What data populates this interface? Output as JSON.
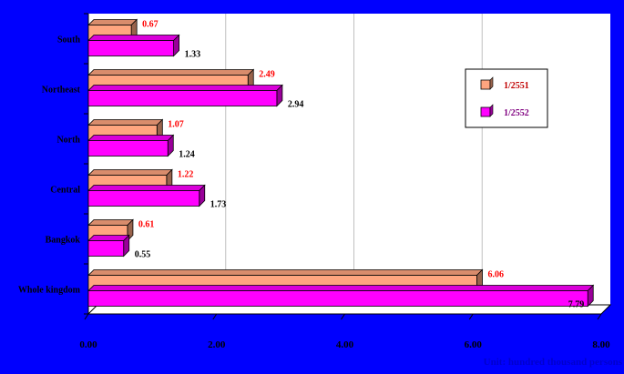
{
  "chart_data": {
    "type": "bar",
    "orientation": "horizontal",
    "categories": [
      "Whole kingdom",
      "Bangkok",
      "Central",
      "North",
      "Northeast",
      "South"
    ],
    "series": [
      {
        "name": "1/2551",
        "values": [
          6.06,
          0.61,
          1.22,
          1.07,
          2.49,
          0.67
        ],
        "color": "#FFA57F",
        "label_color": "#FF0000"
      },
      {
        "name": "1/2552",
        "values": [
          7.79,
          0.55,
          1.73,
          1.24,
          2.94,
          1.33
        ],
        "color": "#FF00FF",
        "label_color": "#000000"
      }
    ],
    "value_labels": [
      [
        "6.06",
        "0.61",
        "1.22",
        "1.07",
        "2.49",
        "0.67"
      ],
      [
        "7.79",
        "0.55",
        "1.73",
        "1.24",
        "2.94",
        "1.33"
      ]
    ],
    "xticks": [
      "0.00",
      "2.00",
      "4.00",
      "6.00",
      "8.00"
    ],
    "xlim": [
      0,
      8
    ],
    "grid": true,
    "legend_position": "top-right",
    "title": "",
    "xlabel": "",
    "ylabel": ""
  },
  "note": "Unit: hundred thousand persons",
  "colors": {
    "background": "#0000FE",
    "plot_area": "#FFFFFF",
    "gridline": "#C0C0C0"
  }
}
